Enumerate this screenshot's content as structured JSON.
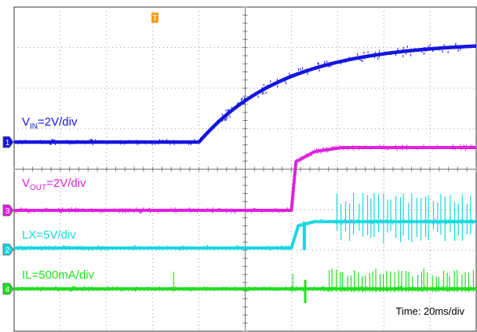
{
  "chart_data": {
    "type": "line",
    "title": "",
    "xlabel": "",
    "ylabel": "",
    "time_label": "Time: 20ms/div",
    "divisions": {
      "x": 10,
      "y": 8
    },
    "x_unit": "div",
    "trigger_marker": "T",
    "colors": {
      "grid": "#9a9a9a",
      "background": "#ffffff",
      "trigger": "#f0a020"
    },
    "channels": [
      {
        "id": "1",
        "marker": "1",
        "label_main": "V",
        "label_sub": "IN",
        "label_rest": "=2V/div",
        "color": "#1515e0",
        "type": "rc-rise",
        "points": [
          [
            0.0,
            0.0
          ],
          [
            4.0,
            0.0
          ],
          [
            4.9,
            0.9
          ],
          [
            6.3,
            1.8
          ],
          [
            8.4,
            2.3
          ],
          [
            10.0,
            2.37
          ]
        ]
      },
      {
        "id": "3",
        "marker": "3",
        "label_main": "V",
        "label_sub": "OUT",
        "label_rest": "=2V/div",
        "color": "#e020e0",
        "type": "step",
        "points": [
          [
            0.0,
            0.0
          ],
          [
            6.0,
            0.0
          ],
          [
            6.1,
            1.2
          ],
          [
            6.5,
            1.45
          ],
          [
            7.1,
            1.55
          ],
          [
            10.0,
            1.55
          ]
        ]
      },
      {
        "id": "2",
        "marker": "2",
        "label_main": "LX",
        "label_sub": "",
        "label_rest": "=5V/div",
        "color": "#18d8e0",
        "type": "switching",
        "points": [
          [
            0.0,
            0.0
          ],
          [
            6.0,
            0.0
          ],
          [
            6.15,
            0.55
          ],
          [
            6.5,
            0.65
          ],
          [
            10.0,
            0.65
          ]
        ],
        "pulse_height": 0.72
      },
      {
        "id": "4",
        "marker": "4",
        "label_main": "IL",
        "label_sub": "",
        "label_rest": "=500mA/div",
        "color": "#20e020",
        "type": "spikes",
        "points": [
          [
            0.0,
            0.0
          ],
          [
            10.0,
            0.0
          ]
        ],
        "spike_height": 0.5
      }
    ],
    "legend_placement": "inline-left",
    "grid": true
  }
}
